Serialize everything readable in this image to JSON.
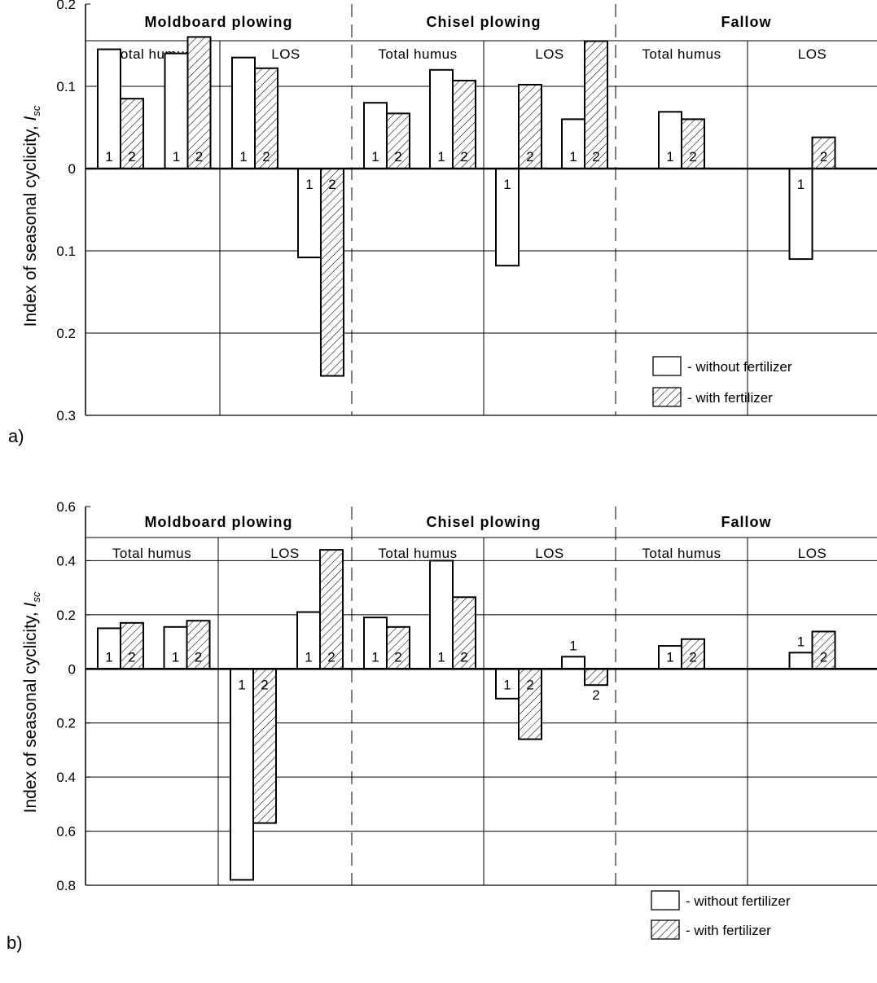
{
  "chart_data": [
    {
      "panel_label": "a)",
      "type": "bar",
      "ylabel_main": "Index of seasonal cyclicity, ",
      "ylabel_sym": "I",
      "ylabel_sub": "sc",
      "ylim": [
        -0.3,
        0.2
      ],
      "ticks": [
        {
          "value": 0.2,
          "label": "0.2"
        },
        {
          "value": 0.1,
          "label": "0.1"
        },
        {
          "value": 0,
          "label": "0"
        },
        {
          "value": -0.1,
          "label": "0.1"
        },
        {
          "value": -0.2,
          "label": "0.2"
        },
        {
          "value": -0.3,
          "label": "0.3"
        }
      ],
      "groups": [
        {
          "title": "Moldboard plowing",
          "subgroups": [
            {
              "title": "Total humus",
              "pairs": [
                {
                  "series": [
                    {
                      "num": "1",
                      "value": 0.145
                    },
                    {
                      "num": "2",
                      "value": 0.085
                    }
                  ]
                },
                {
                  "series": [
                    {
                      "num": "1",
                      "value": 0.14
                    },
                    {
                      "num": "2",
                      "value": 0.16
                    }
                  ]
                }
              ]
            },
            {
              "title": "LOS",
              "pairs": [
                {
                  "series": [
                    {
                      "num": "1",
                      "value": 0.135
                    },
                    {
                      "num": "2",
                      "value": 0.122
                    }
                  ]
                },
                {
                  "series": [
                    {
                      "num": "1",
                      "value": -0.108
                    },
                    {
                      "num": "2",
                      "value": -0.252
                    }
                  ]
                }
              ]
            }
          ]
        },
        {
          "title": "Chisel plowing",
          "subgroups": [
            {
              "title": "Total humus",
              "pairs": [
                {
                  "series": [
                    {
                      "num": "1",
                      "value": 0.08
                    },
                    {
                      "num": "2",
                      "value": 0.067
                    }
                  ]
                },
                {
                  "series": [
                    {
                      "num": "1",
                      "value": 0.12
                    },
                    {
                      "num": "2",
                      "value": 0.107
                    }
                  ]
                }
              ]
            },
            {
              "title": "LOS",
              "pairs": [
                {
                  "series": [
                    {
                      "num": "1",
                      "value": -0.118
                    },
                    {
                      "num": "2",
                      "value": 0.102
                    }
                  ]
                },
                {
                  "series": [
                    {
                      "num": "1",
                      "value": 0.06
                    },
                    {
                      "num": "2",
                      "value": 0.155
                    }
                  ]
                }
              ]
            }
          ]
        },
        {
          "title": "Fallow",
          "subgroups": [
            {
              "title": "Total humus",
              "pairs": [
                {
                  "series": [
                    {
                      "num": "1",
                      "value": 0.069
                    },
                    {
                      "num": "2",
                      "value": 0.06
                    }
                  ]
                }
              ]
            },
            {
              "title": "LOS",
              "pairs": [
                {
                  "series": [
                    {
                      "num": "1",
                      "value": -0.11
                    },
                    {
                      "num": "2",
                      "value": 0.038
                    }
                  ]
                }
              ]
            }
          ]
        }
      ],
      "legend": [
        {
          "label": "- without fertilizer",
          "pattern": "open"
        },
        {
          "label": "- with fertilizer",
          "pattern": "hatched"
        }
      ],
      "legend_position": "bottom-right"
    },
    {
      "panel_label": "b)",
      "type": "bar",
      "ylabel_main": "Index of seasonal cyclicity, ",
      "ylabel_sym": "I",
      "ylabel_sub": "sc",
      "ylim": [
        -0.8,
        0.6
      ],
      "ticks": [
        {
          "value": 0.6,
          "label": "0.6"
        },
        {
          "value": 0.4,
          "label": "0.4"
        },
        {
          "value": 0.2,
          "label": "0.2"
        },
        {
          "value": 0,
          "label": "0"
        },
        {
          "value": -0.2,
          "label": "0.2"
        },
        {
          "value": -0.4,
          "label": "0.4"
        },
        {
          "value": -0.6,
          "label": "0.6"
        },
        {
          "value": -0.8,
          "label": "0.8"
        }
      ],
      "groups": [
        {
          "title": "Moldboard plowing",
          "subgroups": [
            {
              "title": "Total humus",
              "pairs": [
                {
                  "series": [
                    {
                      "num": "1",
                      "value": 0.15
                    },
                    {
                      "num": "2",
                      "value": 0.17
                    }
                  ]
                },
                {
                  "series": [
                    {
                      "num": "1",
                      "value": 0.155
                    },
                    {
                      "num": "2",
                      "value": 0.178
                    }
                  ]
                }
              ]
            },
            {
              "title": "LOS",
              "pairs": [
                {
                  "series": [
                    {
                      "num": "1",
                      "value": -0.78
                    },
                    {
                      "num": "2",
                      "value": -0.57
                    }
                  ]
                },
                {
                  "series": [
                    {
                      "num": "1",
                      "value": 0.21
                    },
                    {
                      "num": "2",
                      "value": 0.44
                    }
                  ]
                }
              ]
            }
          ]
        },
        {
          "title": "Chisel plowing",
          "subgroups": [
            {
              "title": "Total humus",
              "pairs": [
                {
                  "series": [
                    {
                      "num": "1",
                      "value": 0.19
                    },
                    {
                      "num": "2",
                      "value": 0.155
                    }
                  ]
                },
                {
                  "series": [
                    {
                      "num": "1",
                      "value": 0.4
                    },
                    {
                      "num": "2",
                      "value": 0.265
                    }
                  ]
                }
              ]
            },
            {
              "title": "LOS",
              "pairs": [
                {
                  "series": [
                    {
                      "num": "1",
                      "value": -0.11
                    },
                    {
                      "num": "2",
                      "value": -0.26
                    }
                  ]
                },
                {
                  "series": [
                    {
                      "num": "1",
                      "value": 0.045,
                      "label_outside": true
                    },
                    {
                      "num": "2",
                      "value": -0.06,
                      "label_outside": true
                    }
                  ]
                }
              ]
            }
          ]
        },
        {
          "title": "Fallow",
          "subgroups": [
            {
              "title": "Total humus",
              "pairs": [
                {
                  "series": [
                    {
                      "num": "1",
                      "value": 0.085
                    },
                    {
                      "num": "2",
                      "value": 0.11
                    }
                  ]
                }
              ]
            },
            {
              "title": "LOS",
              "pairs": [
                {
                  "series": [
                    {
                      "num": "1",
                      "value": 0.06,
                      "label_outside": true
                    },
                    {
                      "num": "2",
                      "value": 0.138
                    }
                  ]
                }
              ]
            }
          ]
        }
      ],
      "legend": [
        {
          "label": "- without fertilizer",
          "pattern": "open"
        },
        {
          "label": "- with fertilizer",
          "pattern": "hatched"
        }
      ],
      "legend_position": "bottom-right"
    }
  ]
}
